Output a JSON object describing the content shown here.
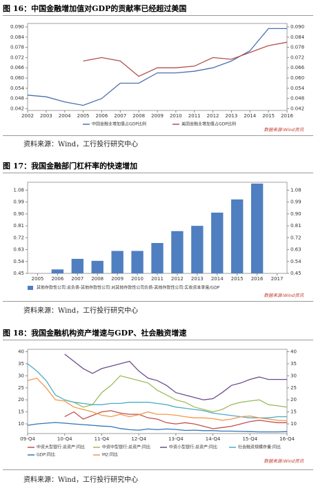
{
  "chart_data": [
    {
      "type": "line",
      "title": "图 16：中国金融增加值对GDP的贡献率已经超过美国",
      "categories": [
        "2002",
        "2003",
        "2004",
        "2005",
        "2006",
        "2007",
        "2008",
        "2009",
        "2010",
        "2011",
        "2012",
        "2013",
        "2014",
        "2015",
        "2016"
      ],
      "series": [
        {
          "name": "中国金融业增加值占GDP比例",
          "color": "#4a6fb0",
          "values": [
            0.05,
            0.049,
            0.046,
            0.044,
            0.048,
            0.057,
            0.057,
            0.063,
            0.063,
            0.064,
            0.066,
            0.07,
            0.076,
            0.089,
            0.089
          ]
        },
        {
          "name": "美国金融业增加值占GDP比例",
          "color": "#b0504e",
          "values": [
            null,
            null,
            null,
            0.07,
            0.072,
            0.07,
            0.061,
            0.066,
            0.066,
            0.067,
            0.072,
            0.071,
            0.075,
            0.079,
            0.081
          ]
        }
      ],
      "ylim": [
        0.041,
        0.092
      ],
      "yticks": [
        0.042,
        0.048,
        0.054,
        {
          "value": 0.06,
          "label": "0.060"
        },
        0.066,
        0.072,
        0.078,
        0.084,
        {
          "value": 0.09,
          "label": "0.090"
        }
      ],
      "note": "数据来源:Wind资讯",
      "source": "资料来源：Wind，工行投行研究中心"
    },
    {
      "type": "bar",
      "title": "图 17：我国金融部门杠杆率的快速增加",
      "categories": [
        "2005",
        "2006",
        "2007",
        "2008",
        "2009",
        "2010",
        "2011",
        "2012",
        "2013",
        "2014",
        "2015",
        "2016",
        "2017"
      ],
      "series": [
        {
          "name": "其他存款性公司:总负债-其他存款性公司:对其他存款性公司负债-其他存款性公司:实收资本季度/GDP",
          "color": "#4f7fc1",
          "values": [
            null,
            0.48,
            0.56,
            0.545,
            0.62,
            0.62,
            0.68,
            0.77,
            0.81,
            0.91,
            1.01,
            1.13,
            null
          ]
        }
      ],
      "ylim": [
        0.45,
        1.14
      ],
      "yticks": [
        0.45,
        0.54,
        0.63,
        0.72,
        0.81,
        {
          "value": 0.9,
          "label": "0.90"
        },
        0.99,
        1.08
      ],
      "note": "数据来源:Wind资讯",
      "source": "资料来源：Wind，工行投行研究中心"
    },
    {
      "type": "line",
      "title": "图 18：我国金融机构资产增速与GDP、社会融资增速",
      "categories": [
        "09-Q4",
        null,
        null,
        null,
        "10-Q4",
        null,
        null,
        null,
        "11-Q4",
        null,
        null,
        null,
        "12-Q4",
        null,
        null,
        null,
        "13-Q4",
        null,
        null,
        null,
        "14-Q4",
        null,
        null,
        null,
        "15-Q4",
        null,
        null,
        null,
        "16-Q4"
      ],
      "series": [
        {
          "name": "中资大型银行:总资产:同比",
          "color": "#c0504d",
          "values": [
            null,
            null,
            null,
            null,
            13,
            15,
            12,
            13.5,
            15,
            15.5,
            14.5,
            14,
            14,
            12.5,
            12,
            10.5,
            10,
            10.5,
            10,
            9,
            8,
            8.5,
            9,
            10,
            11,
            11.5,
            11,
            10.5,
            10.5
          ]
        },
        {
          "name": "中资中型银行:总资产:同比",
          "color": "#9bbb59",
          "values": [
            null,
            null,
            null,
            null,
            20,
            19,
            17,
            18,
            23,
            26,
            30,
            29,
            28,
            27,
            24,
            22,
            20,
            19,
            17,
            16,
            15,
            16,
            18,
            19,
            19.5,
            20,
            18,
            17.5,
            17
          ]
        },
        {
          "name": "中资小型银行:总资产:同比",
          "color": "#6b4c8a",
          "values": [
            null,
            null,
            null,
            null,
            39,
            36,
            33,
            31,
            33,
            34,
            35,
            36,
            32,
            29,
            28,
            26,
            23,
            22,
            21,
            20,
            20.5,
            23,
            26,
            27,
            28.5,
            29.5,
            28.5,
            28.5,
            28.5
          ]
        },
        {
          "name": "社会融资规模存量:同比",
          "color": "#4bacc6",
          "values": [
            35,
            32,
            28,
            22,
            20,
            19,
            18.5,
            18,
            18,
            18.5,
            18.5,
            19,
            19,
            19,
            18.5,
            18,
            17,
            16.5,
            16,
            15.5,
            14.5,
            14,
            13.5,
            13,
            12.5,
            12.5,
            12.5,
            13,
            13
          ]
        },
        {
          "name": "GDP:同比",
          "color": "#2e75b6",
          "values": [
            9.4,
            10,
            10.3,
            10.6,
            10.3,
            10,
            9.7,
            9.4,
            9.1,
            8.9,
            8.1,
            7.6,
            7.4,
            7.9,
            7.6,
            7.9,
            7.7,
            7.3,
            7.4,
            7.2,
            7.2,
            7.0,
            7.0,
            6.9,
            6.8,
            6.7,
            6.7,
            6.7,
            6.8
          ]
        },
        {
          "name": "M2:同比",
          "color": "#f79646",
          "values": [
            28,
            29,
            25,
            20,
            19.5,
            17,
            16,
            15,
            13.6,
            13,
            14,
            13,
            13.8,
            15,
            14,
            14,
            13.6,
            13,
            12.5,
            12.5,
            12.2,
            11.5,
            12,
            13,
            13.3,
            12.5,
            12,
            11.5,
            11.3
          ]
        }
      ],
      "ylim": [
        6,
        41
      ],
      "yticks": [
        10,
        15,
        20,
        25,
        30,
        35,
        40
      ],
      "note": "数据来源:Wind资讯",
      "source": "资料来源：Wind，工行投行研究中心"
    }
  ]
}
